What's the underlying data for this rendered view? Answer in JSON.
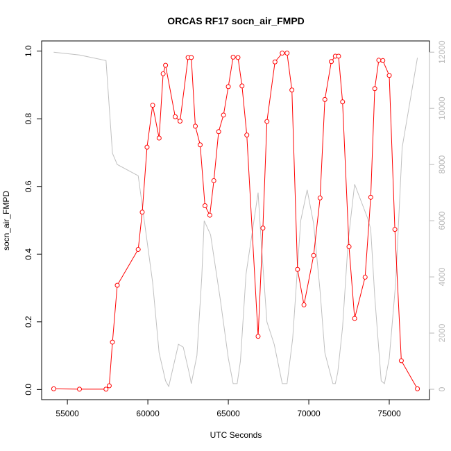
{
  "chart_data": {
    "type": "line",
    "title": "ORCAS RF17 socn_air_FMPD",
    "xlabel": "UTC Seconds",
    "ylabel": "socn_air_FMPD",
    "xlim": [
      53400,
      77500
    ],
    "ylim": [
      -0.03,
      1.03
    ],
    "y2lim": [
      -370,
      12400
    ],
    "x_ticks": [
      55000,
      60000,
      65000,
      70000,
      75000
    ],
    "y_ticks": [
      0.0,
      0.2,
      0.4,
      0.6,
      0.8,
      1.0
    ],
    "y_tick_labels": [
      "0.0",
      "0.2",
      "0.4",
      "0.6",
      "0.8",
      "1.0"
    ],
    "y2_ticks": [
      0,
      2000,
      4000,
      6000,
      8000,
      10000,
      12000
    ],
    "grid": false,
    "series": [
      {
        "axis": "left",
        "color": "#ff0000",
        "style": "line+open-circles",
        "x": [
          54150,
          55750,
          57400,
          57600,
          57800,
          58100,
          59400,
          59650,
          59950,
          60300,
          60700,
          60950,
          61100,
          61700,
          62000,
          62500,
          62700,
          62950,
          63250,
          63550,
          63850,
          64100,
          64400,
          64700,
          65000,
          65300,
          65600,
          65850,
          66150,
          66850,
          67150,
          67400,
          67900,
          68350,
          68650,
          68950,
          69300,
          69700,
          70300,
          70700,
          71000,
          71400,
          71650,
          71850,
          72100,
          72500,
          72850,
          73500,
          73850,
          74100,
          74350,
          74600,
          75000,
          75350,
          75750,
          76750
        ],
        "values": [
          0.002,
          0.001,
          0.001,
          0.011,
          0.14,
          0.308,
          0.414,
          0.524,
          0.716,
          0.84,
          0.743,
          0.933,
          0.958,
          0.806,
          0.793,
          0.981,
          0.981,
          0.778,
          0.723,
          0.543,
          0.515,
          0.617,
          0.762,
          0.811,
          0.895,
          0.982,
          0.981,
          0.897,
          0.752,
          0.157,
          0.477,
          0.792,
          0.968,
          0.994,
          0.994,
          0.885,
          0.355,
          0.25,
          0.396,
          0.566,
          0.857,
          0.969,
          0.985,
          0.985,
          0.85,
          0.422,
          0.21,
          0.332,
          0.568,
          0.889,
          0.973,
          0.972,
          0.928,
          0.473,
          0.085,
          0.002
        ]
      },
      {
        "axis": "right",
        "color": "#c0c0c0",
        "style": "line",
        "x": [
          54150,
          55750,
          57400,
          57800,
          58100,
          59400,
          60300,
          60700,
          61100,
          61300,
          61900,
          62200,
          62600,
          62700,
          63050,
          63350,
          63500,
          63900,
          64500,
          65000,
          65300,
          65550,
          65750,
          66100,
          66850,
          67050,
          67400,
          67850,
          68350,
          68650,
          69000,
          69500,
          69900,
          70300,
          70700,
          71000,
          71500,
          71650,
          71800,
          72100,
          72450,
          72850,
          73650,
          73850,
          74100,
          74500,
          74700,
          75000,
          75400,
          75800,
          76750
        ],
        "values": [
          12000,
          11900,
          11700,
          8400,
          8000,
          7600,
          3800,
          1300,
          300,
          100,
          1600,
          1500,
          500,
          200,
          1200,
          4000,
          6000,
          5500,
          3200,
          1100,
          200,
          200,
          1000,
          4100,
          7000,
          5200,
          2400,
          1600,
          200,
          200,
          1800,
          6000,
          7100,
          5900,
          3500,
          1300,
          200,
          200,
          600,
          2200,
          5300,
          7300,
          6100,
          5700,
          3300,
          300,
          200,
          1100,
          3800,
          8600,
          11800
        ]
      }
    ]
  }
}
